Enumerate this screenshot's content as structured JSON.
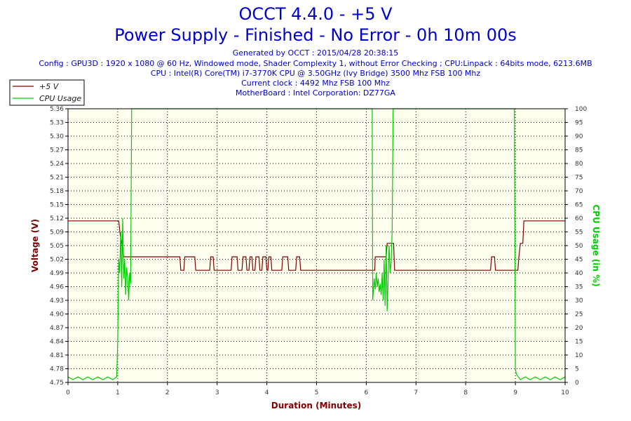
{
  "header": {
    "title": "OCCT 4.4.0 - +5 V",
    "subtitle": "Power Supply - Finished - No Error - 0h 10m 00s",
    "generated": "Generated by OCCT : 2015/04/28 20:38:15",
    "config": "Config : GPU3D : 1920 x 1080 @ 60 Hz, Windowed mode, Shader Complexity 1, without Error Checking ; CPU:Linpack : 64bits mode, 6213.6MB",
    "cpu": "CPU : Intel(R) Core(TM) i7-3770K CPU @ 3.50GHz (Ivy Bridge) 3500 Mhz FSB 100 Mhz",
    "clock": "Current clock : 4492 Mhz FSB 100 Mhz",
    "motherboard": "MotherBoard : Intel Corporation: DZ77GA"
  },
  "colors": {
    "voltage_series": "#800000",
    "cpu_series": "#00cc00",
    "left_axis_title": "#800000",
    "right_axis_title": "#00cc00",
    "x_axis_title": "#800000",
    "header_text": "#0000cc",
    "plot_bg": "#fffff0"
  },
  "chart_data": {
    "type": "line",
    "xlabel": "Duration (Minutes)",
    "ylabel": "Voltage (V)",
    "y2label": "CPU Usage (in %)",
    "xlim": [
      0,
      10
    ],
    "ylim": [
      4.75,
      5.36
    ],
    "y2lim": [
      0,
      100
    ],
    "x_ticks": [
      "0",
      "1",
      "2",
      "3",
      "4",
      "5",
      "6",
      "7",
      "8",
      "9",
      "10"
    ],
    "y_ticks": [
      "4.75",
      "4.78",
      "4.81",
      "4.84",
      "4.87",
      "4.90",
      "4.93",
      "4.96",
      "4.99",
      "5.02",
      "5.05",
      "5.09",
      "5.12",
      "5.15",
      "5.18",
      "5.21",
      "5.24",
      "5.27",
      "5.30",
      "5.33",
      "5.36"
    ],
    "y2_ticks": [
      "0",
      "5",
      "10",
      "15",
      "20",
      "25",
      "30",
      "35",
      "40",
      "45",
      "50",
      "55",
      "60",
      "65",
      "70",
      "75",
      "80",
      "85",
      "90",
      "95",
      "100"
    ],
    "grid": true,
    "legend": "top-left",
    "series": [
      {
        "name": "+5 V",
        "axis": "left",
        "points": [
          [
            0,
            5.11
          ],
          [
            1.02,
            5.11
          ],
          [
            1.05,
            5.08
          ],
          [
            1.1,
            5.05
          ],
          [
            1.12,
            5.03
          ],
          [
            2.25,
            5.03
          ],
          [
            2.27,
            5.0
          ],
          [
            2.33,
            5.0
          ],
          [
            2.35,
            5.03
          ],
          [
            2.55,
            5.03
          ],
          [
            2.57,
            5.0
          ],
          [
            2.85,
            5.0
          ],
          [
            2.87,
            5.03
          ],
          [
            2.92,
            5.03
          ],
          [
            2.94,
            5.0
          ],
          [
            3.28,
            5.0
          ],
          [
            3.3,
            5.03
          ],
          [
            3.4,
            5.03
          ],
          [
            3.42,
            5.0
          ],
          [
            3.5,
            5.0
          ],
          [
            3.52,
            5.03
          ],
          [
            3.58,
            5.03
          ],
          [
            3.6,
            5.0
          ],
          [
            3.64,
            5.0
          ],
          [
            3.66,
            5.03
          ],
          [
            3.7,
            5.03
          ],
          [
            3.72,
            5.0
          ],
          [
            3.76,
            5.0
          ],
          [
            3.78,
            5.03
          ],
          [
            3.84,
            5.03
          ],
          [
            3.86,
            5.0
          ],
          [
            3.9,
            5.0
          ],
          [
            3.92,
            5.03
          ],
          [
            3.98,
            5.03
          ],
          [
            4.0,
            5.0
          ],
          [
            4.02,
            5.0
          ],
          [
            4.04,
            5.03
          ],
          [
            4.08,
            5.03
          ],
          [
            4.1,
            5.0
          ],
          [
            4.3,
            5.0
          ],
          [
            4.32,
            5.03
          ],
          [
            4.42,
            5.03
          ],
          [
            4.44,
            5.0
          ],
          [
            4.58,
            5.0
          ],
          [
            4.6,
            5.03
          ],
          [
            4.66,
            5.03
          ],
          [
            4.68,
            5.0
          ],
          [
            4.72,
            5.0
          ],
          [
            4.74,
            5.0
          ],
          [
            6.15,
            5.0
          ],
          [
            6.17,
            5.0
          ],
          [
            6.18,
            5.03
          ],
          [
            6.4,
            5.03
          ],
          [
            6.42,
            5.06
          ],
          [
            6.55,
            5.06
          ],
          [
            6.57,
            5.0
          ],
          [
            8.5,
            5.0
          ],
          [
            8.52,
            5.03
          ],
          [
            8.58,
            5.03
          ],
          [
            8.6,
            5.0
          ],
          [
            9.05,
            5.0
          ],
          [
            9.07,
            5.03
          ],
          [
            9.1,
            5.06
          ],
          [
            9.15,
            5.06
          ],
          [
            9.17,
            5.11
          ],
          [
            10,
            5.11
          ]
        ]
      },
      {
        "name": "CPU Usage",
        "axis": "right",
        "points": [
          [
            0,
            2
          ],
          [
            0.1,
            1
          ],
          [
            0.2,
            2
          ],
          [
            0.3,
            1
          ],
          [
            0.4,
            2
          ],
          [
            0.5,
            1
          ],
          [
            0.6,
            2
          ],
          [
            0.7,
            1
          ],
          [
            0.8,
            2
          ],
          [
            0.9,
            1
          ],
          [
            0.98,
            2
          ],
          [
            1.0,
            15
          ],
          [
            1.02,
            45
          ],
          [
            1.04,
            40
          ],
          [
            1.06,
            55
          ],
          [
            1.08,
            35
          ],
          [
            1.1,
            60
          ],
          [
            1.12,
            38
          ],
          [
            1.14,
            45
          ],
          [
            1.16,
            32
          ],
          [
            1.18,
            42
          ],
          [
            1.2,
            38
          ],
          [
            1.22,
            30
          ],
          [
            1.24,
            40
          ],
          [
            1.26,
            36
          ],
          [
            1.28,
            100
          ],
          [
            6.12,
            100
          ],
          [
            6.13,
            30
          ],
          [
            6.16,
            38
          ],
          [
            6.18,
            34
          ],
          [
            6.2,
            40
          ],
          [
            6.22,
            35
          ],
          [
            6.24,
            38
          ],
          [
            6.26,
            33
          ],
          [
            6.28,
            36
          ],
          [
            6.3,
            32
          ],
          [
            6.32,
            40
          ],
          [
            6.34,
            30
          ],
          [
            6.36,
            45
          ],
          [
            6.38,
            28
          ],
          [
            6.4,
            50
          ],
          [
            6.42,
            26
          ],
          [
            6.44,
            38
          ],
          [
            6.46,
            50
          ],
          [
            6.48,
            40
          ],
          [
            6.5,
            44
          ],
          [
            6.52,
            55
          ],
          [
            6.54,
            100
          ],
          [
            8.98,
            100
          ],
          [
            9.0,
            5
          ],
          [
            9.02,
            3
          ],
          [
            9.1,
            1
          ],
          [
            9.2,
            2
          ],
          [
            9.3,
            1
          ],
          [
            9.4,
            2
          ],
          [
            9.5,
            1
          ],
          [
            9.6,
            2
          ],
          [
            9.7,
            1
          ],
          [
            9.8,
            2
          ],
          [
            9.9,
            1
          ],
          [
            10,
            2
          ]
        ]
      }
    ]
  }
}
